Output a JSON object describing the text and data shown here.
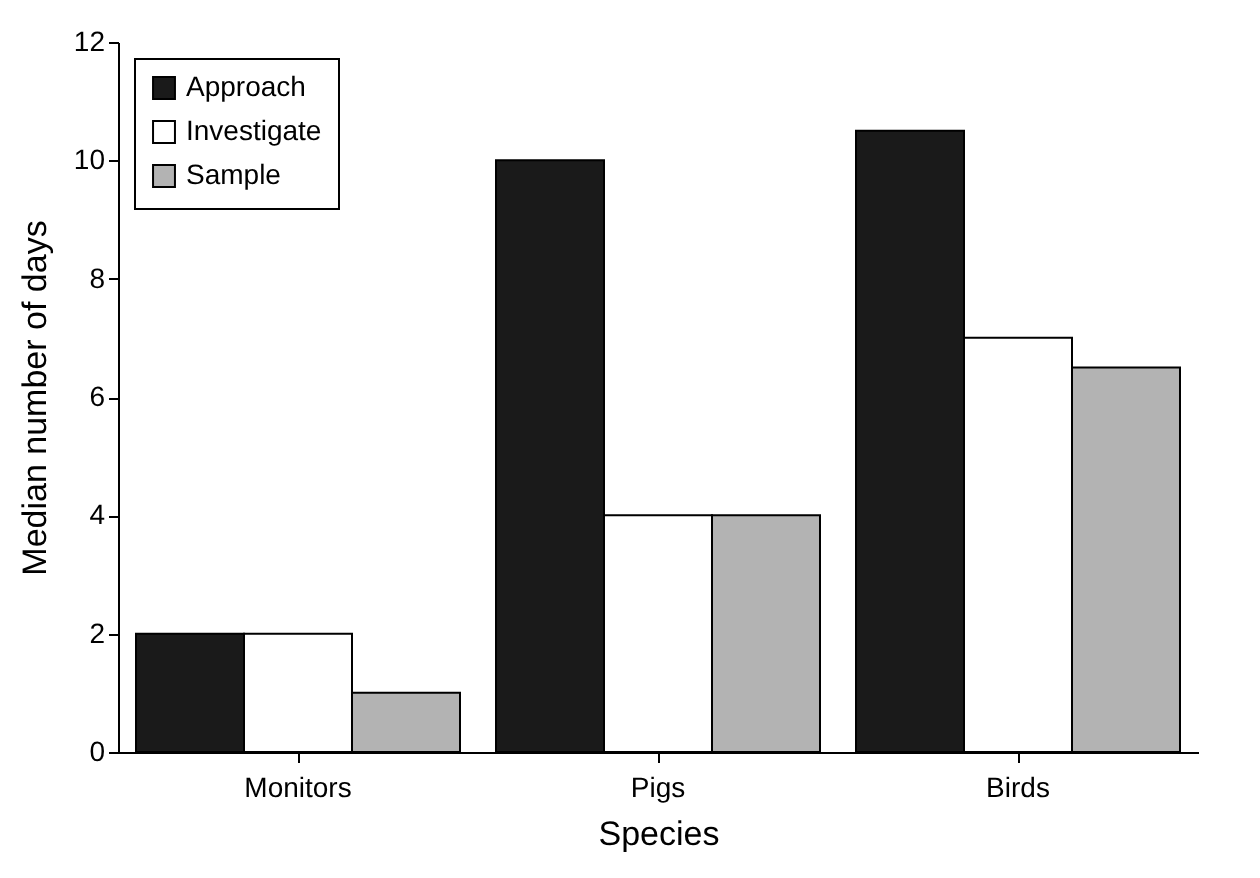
{
  "chart_data": {
    "type": "bar",
    "xlabel": "Species",
    "ylabel": "Median number of days",
    "categories": [
      "Monitors",
      "Pigs",
      "Birds"
    ],
    "series": [
      {
        "name": "Approach",
        "color": "#1a1a1a",
        "values": [
          2,
          10,
          10.5
        ]
      },
      {
        "name": "Investigate",
        "color": "#ffffff",
        "values": [
          2,
          4,
          7
        ]
      },
      {
        "name": "Sample",
        "color": "#b3b3b3",
        "values": [
          1,
          4,
          6.5
        ]
      }
    ],
    "ylim": [
      0,
      12
    ],
    "yticks": [
      0,
      2,
      4,
      6,
      8,
      10,
      12
    ],
    "grid": false,
    "legend": "top left"
  }
}
